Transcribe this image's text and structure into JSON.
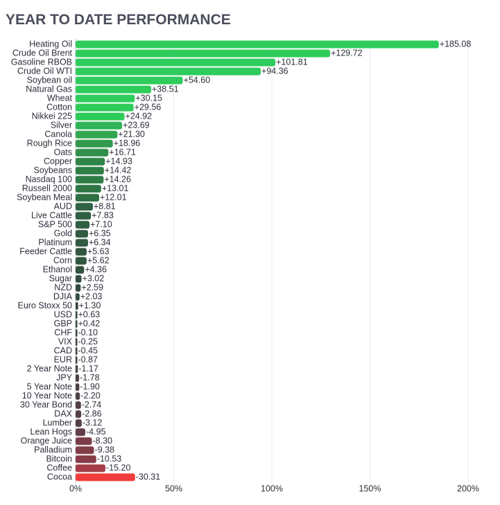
{
  "chart_data": {
    "type": "bar",
    "orientation": "horizontal",
    "title": "YEAR TO DATE PERFORMANCE",
    "categories": [
      "Heating Oil",
      "Crude Oil Brent",
      "Gasoline RBOB",
      "Crude Oil WTI",
      "Soybean oil",
      "Natural Gas",
      "Wheat",
      "Cotton",
      "Nikkei 225",
      "Silver",
      "Canola",
      "Rough Rice",
      "Oats",
      "Copper",
      "Soybeans",
      "Nasdaq 100",
      "Russell 2000",
      "Soybean Meal",
      "AUD",
      "Live Cattle",
      "S&P 500",
      "Gold",
      "Platinum",
      "Feeder Cattle",
      "Corn",
      "Ethanol",
      "Sugar",
      "NZD",
      "DJIA",
      "Euro Stoxx 50",
      "USD",
      "GBP",
      "CHF",
      "VIX",
      "CAD",
      "EUR",
      "2 Year Note",
      "JPY",
      "5 Year Note",
      "10 Year Note",
      "30 Year Bond",
      "DAX",
      "Lumber",
      "Lean Hogs",
      "Orange Juice",
      "Palladium",
      "Bitcoin",
      "Coffee",
      "Cocoa"
    ],
    "values": [
      185.08,
      129.72,
      101.81,
      94.36,
      54.6,
      38.51,
      30.15,
      29.56,
      24.92,
      23.69,
      21.3,
      18.96,
      16.71,
      14.93,
      14.42,
      14.26,
      13.01,
      12.01,
      8.81,
      7.83,
      7.1,
      6.35,
      6.34,
      5.63,
      5.62,
      4.36,
      3.02,
      2.59,
      2.03,
      1.3,
      0.63,
      0.42,
      -0.1,
      -0.25,
      -0.45,
      -0.87,
      -1.17,
      -1.78,
      -1.9,
      -2.2,
      -2.74,
      -2.86,
      -3.12,
      -4.95,
      -8.3,
      -9.38,
      -10.53,
      -15.2,
      -30.31
    ],
    "value_labels": [
      "+185.08",
      "+129.72",
      "+101.81",
      "+94.36",
      "+54.60",
      "+38.51",
      "+30.15",
      "+29.56",
      "+24.92",
      "+23.69",
      "+21.30",
      "+18.96",
      "+16.71",
      "+14.93",
      "+14.42",
      "+14.26",
      "+13.01",
      "+12.01",
      "+8.81",
      "+7.83",
      "+7.10",
      "+6.35",
      "+6.34",
      "+5.63",
      "+5.62",
      "+4.36",
      "+3.02",
      "+2.59",
      "+2.03",
      "+1.30",
      "+0.63",
      "+0.42",
      "-0.10",
      "-0.25",
      "-0.45",
      "-0.87",
      "-1.17",
      "-1.78",
      "-1.90",
      "-2.20",
      "-2.74",
      "-2.86",
      "-3.12",
      "-4.95",
      "-8.30",
      "-9.38",
      "-10.53",
      "-15.20",
      "-30.31"
    ],
    "colors": [
      "#2ecc5b",
      "#2ecc5b",
      "#2ecc5b",
      "#2ecc5b",
      "#2ecc5b",
      "#2ecc5b",
      "#2ecc5b",
      "#2ecc5b",
      "#2ecb5a",
      "#32b456",
      "#31a84f",
      "#319a4d",
      "#318f4b",
      "#2f8547",
      "#2f7e46",
      "#2f7c46",
      "#2e7644",
      "#2e7043",
      "#2f6343",
      "#2f6042",
      "#305e42",
      "#305a42",
      "#305a42",
      "#315741",
      "#315741",
      "#325340",
      "#334e40",
      "#344c40",
      "#354a40",
      "#364840",
      "#37463f",
      "#38463f",
      "#3a4444",
      "#3c4345",
      "#3e4246",
      "#424147",
      "#463f47",
      "#4b3f47",
      "#4c3f47",
      "#4e3f47",
      "#533f47",
      "#543f47",
      "#573f47",
      "#623e48",
      "#7a3d48",
      "#803d48",
      "#873c48",
      "#a53c48",
      "#f03c3c"
    ],
    "xlim": [
      0,
      200
    ],
    "xticks": [
      {
        "value": 0,
        "label": "0%"
      },
      {
        "value": 50,
        "label": "50%"
      },
      {
        "value": 100,
        "label": "100%"
      },
      {
        "value": 150,
        "label": "150%"
      },
      {
        "value": 200,
        "label": "200%"
      }
    ],
    "grid": true
  }
}
